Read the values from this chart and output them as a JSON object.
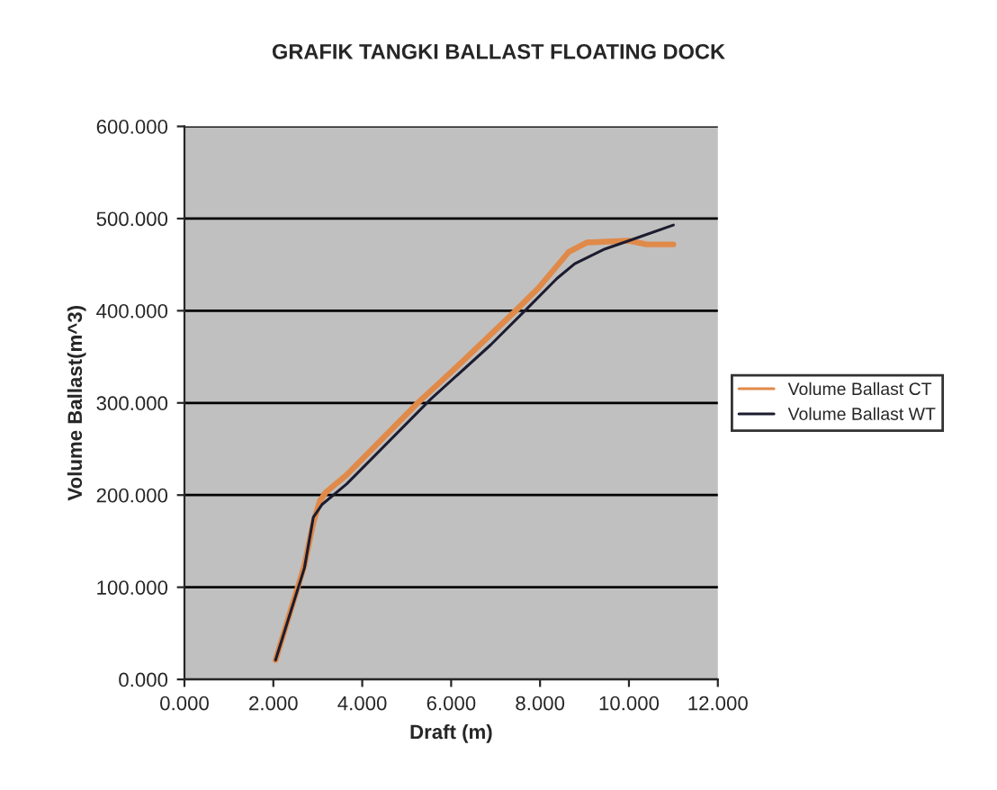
{
  "chart_data": {
    "type": "line",
    "title": "GRAFIK TANGKI BALLAST FLOATING DOCK",
    "xlabel": "Draft (m)",
    "ylabel": "Volume Ballast(m^3)",
    "xlim": [
      0,
      12
    ],
    "ylim": [
      0,
      600
    ],
    "xticks": [
      {
        "value": 0,
        "label": "0.000"
      },
      {
        "value": 2,
        "label": "2.000"
      },
      {
        "value": 4,
        "label": "4.000"
      },
      {
        "value": 6,
        "label": "6.000"
      },
      {
        "value": 8,
        "label": "8.000"
      },
      {
        "value": 10,
        "label": "10.000"
      },
      {
        "value": 12,
        "label": "12.000"
      }
    ],
    "yticks": [
      {
        "value": 0,
        "label": "0.000"
      },
      {
        "value": 100,
        "label": "100.000"
      },
      {
        "value": 200,
        "label": "200.000"
      },
      {
        "value": 300,
        "label": "300.000"
      },
      {
        "value": 400,
        "label": "400.000"
      },
      {
        "value": 500,
        "label": "500.000"
      },
      {
        "value": 600,
        "label": "600.000"
      }
    ],
    "grid": "y",
    "legend": "right",
    "marker": "none",
    "line_style": "solid",
    "series": [
      {
        "name": "Volume Ballast CT",
        "color": "#e08a4a",
        "x": [
          2.05,
          2.7,
          2.9,
          3.04,
          3.18,
          3.65,
          5.27,
          6.08,
          7.43,
          7.97,
          8.65,
          9.05,
          10.0,
          10.4,
          11.0
        ],
        "values": [
          21,
          124,
          170,
          193,
          203,
          222,
          301,
          337,
          399,
          425,
          464,
          474,
          476,
          472,
          472
        ]
      },
      {
        "name": "Volume Ballast WT",
        "color": "#1c1c30",
        "x": [
          2.05,
          2.7,
          2.9,
          3.1,
          3.65,
          5.54,
          6.89,
          7.7,
          8.38,
          8.78,
          9.46,
          10.0,
          11.0
        ],
        "values": [
          21,
          121,
          176,
          190,
          212,
          304,
          363,
          402,
          435,
          451,
          467,
          476,
          493
        ]
      }
    ]
  }
}
